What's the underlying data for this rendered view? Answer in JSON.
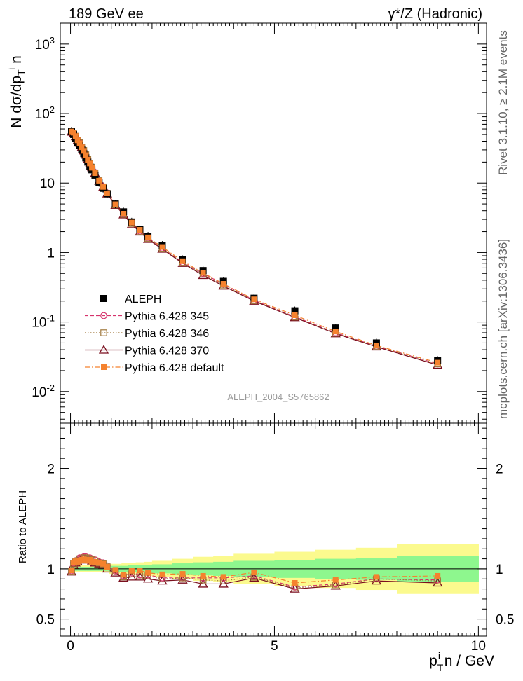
{
  "header": {
    "left": "189 GeV ee",
    "right": "γ*/Z (Hadronic)"
  },
  "side_labels": {
    "rivet": "Rivet 3.1.10, ≥ 2.1M events",
    "mcplots": "mcplots.cern.ch [arXiv:1306.3436]"
  },
  "watermark": "ALEPH_2004_S5765862",
  "colors": {
    "data": "#000000",
    "p345": "#d6336c",
    "p346": "#a0783c",
    "p370": "#7a0f1e",
    "pdefault": "#f5822e",
    "band_inner": "#8ef78e",
    "band_outer": "#fbfa8e"
  },
  "chart_data": [
    {
      "type": "scatter",
      "xlabel": "p_T^i n / GeV",
      "ylabel": "N dσ/dp_T^i n",
      "yscale": "log",
      "xlim": [
        -0.25,
        10.2
      ],
      "ylim": [
        0.0035,
        2000
      ],
      "y_tick_labels": [
        "10^-2",
        "10^-1",
        "1",
        "10",
        "10^2",
        "10^3"
      ],
      "x_tick_labels": [
        "0",
        "5",
        "10"
      ],
      "legend_position": "middle-left",
      "x": [
        0.025,
        0.075,
        0.125,
        0.175,
        0.225,
        0.275,
        0.325,
        0.375,
        0.425,
        0.475,
        0.525,
        0.6,
        0.7,
        0.8,
        0.9,
        1.1,
        1.3,
        1.5,
        1.7,
        1.9,
        2.25,
        2.75,
        3.25,
        3.75,
        4.5,
        5.5,
        6.5,
        7.5,
        9.0
      ],
      "series": [
        {
          "name": "ALEPH",
          "marker": "filled-square",
          "values": [
            56,
            50,
            44,
            38.5,
            34.5,
            30,
            26.5,
            23,
            20,
            17.5,
            15.5,
            13,
            10.2,
            8.4,
            7.0,
            5.0,
            3.85,
            2.75,
            2.15,
            1.72,
            1.27,
            0.79,
            0.55,
            0.385,
            0.22,
            0.145,
            0.082,
            0.05,
            0.028
          ]
        },
        {
          "name": "Pythia 6.428 345",
          "marker": "open-circle",
          "line": "dashed",
          "values": [
            54.9,
            53.0,
            47.5,
            42.0,
            38.3,
            33.3,
            29.7,
            25.8,
            22.2,
            19.4,
            17.1,
            14.2,
            10.9,
            8.9,
            7.2,
            4.9,
            3.58,
            2.64,
            2.03,
            1.62,
            1.16,
            0.72,
            0.5,
            0.35,
            0.205,
            0.119,
            0.07,
            0.045,
            0.025
          ]
        },
        {
          "name": "Pythia 6.428 346",
          "marker": "open-square",
          "line": "dotted",
          "values": [
            54.6,
            52.5,
            47.1,
            41.6,
            38.0,
            33.0,
            29.4,
            25.5,
            22.0,
            19.2,
            16.9,
            14.0,
            10.8,
            8.8,
            7.1,
            4.85,
            3.55,
            2.62,
            2.0,
            1.6,
            1.15,
            0.72,
            0.49,
            0.34,
            0.203,
            0.118,
            0.069,
            0.045,
            0.025
          ]
        },
        {
          "name": "Pythia 6.428 370",
          "marker": "open-triangle",
          "line": "solid",
          "values": [
            54.3,
            52.0,
            46.6,
            41.2,
            37.6,
            32.7,
            29.1,
            25.3,
            21.8,
            19.0,
            16.7,
            13.8,
            10.7,
            8.7,
            7.0,
            4.8,
            3.5,
            2.53,
            1.98,
            1.55,
            1.12,
            0.7,
            0.47,
            0.33,
            0.2,
            0.116,
            0.068,
            0.044,
            0.024
          ]
        },
        {
          "name": "Pythia 6.428 default",
          "marker": "filled-square-small",
          "line": "dashdot",
          "values": [
            55.2,
            53.0,
            47.3,
            41.2,
            37.3,
            32.7,
            29.0,
            25.1,
            21.6,
            19.1,
            16.6,
            13.9,
            10.8,
            8.8,
            7.1,
            4.95,
            3.62,
            2.7,
            2.12,
            1.65,
            1.2,
            0.75,
            0.51,
            0.355,
            0.212,
            0.125,
            0.073,
            0.046,
            0.026
          ]
        }
      ]
    },
    {
      "type": "line",
      "xlabel": "p_T^i n / GeV",
      "ylabel": "Ratio to ALEPH",
      "xlim": [
        -0.25,
        10.2
      ],
      "ylim": [
        0.33,
        2.45
      ],
      "y_tick_labels": [
        "0.5",
        "1",
        "2"
      ],
      "x": [
        0.025,
        0.075,
        0.125,
        0.175,
        0.225,
        0.275,
        0.325,
        0.375,
        0.425,
        0.475,
        0.525,
        0.6,
        0.7,
        0.8,
        0.9,
        1.1,
        1.3,
        1.5,
        1.7,
        1.9,
        2.25,
        2.75,
        3.25,
        3.75,
        4.5,
        5.5,
        6.5,
        7.5,
        9.0
      ],
      "uncertainty_bands": {
        "edges": [
          0.0,
          0.05,
          0.1,
          0.15,
          0.2,
          0.25,
          0.3,
          0.35,
          0.4,
          0.45,
          0.5,
          0.55,
          0.65,
          0.75,
          0.85,
          0.95,
          1.25,
          1.4,
          1.6,
          1.8,
          2.0,
          2.5,
          3.0,
          3.5,
          4.0,
          5.0,
          6.0,
          7.0,
          8.0,
          10.0
        ],
        "inner": [
          0.02,
          0.02,
          0.02,
          0.02,
          0.02,
          0.02,
          0.02,
          0.02,
          0.02,
          0.02,
          0.02,
          0.02,
          0.02,
          0.02,
          0.02,
          0.03,
          0.03,
          0.035,
          0.035,
          0.04,
          0.045,
          0.055,
          0.065,
          0.07,
          0.08,
          0.09,
          0.1,
          0.11,
          0.13
        ],
        "outer": [
          0.035,
          0.035,
          0.035,
          0.035,
          0.035,
          0.035,
          0.035,
          0.035,
          0.035,
          0.035,
          0.035,
          0.035,
          0.035,
          0.035,
          0.035,
          0.05,
          0.055,
          0.06,
          0.065,
          0.07,
          0.08,
          0.1,
          0.12,
          0.13,
          0.15,
          0.17,
          0.19,
          0.21,
          0.25
        ]
      },
      "series": [
        {
          "name": "Pythia 6.428 345",
          "values": [
            0.98,
            1.06,
            1.08,
            1.09,
            1.11,
            1.11,
            1.12,
            1.12,
            1.11,
            1.11,
            1.1,
            1.09,
            1.07,
            1.06,
            1.03,
            0.98,
            0.93,
            0.96,
            0.94,
            0.94,
            0.91,
            0.91,
            0.91,
            0.91,
            0.93,
            0.82,
            0.85,
            0.9,
            0.89
          ]
        },
        {
          "name": "Pythia 6.428 346",
          "values": [
            0.975,
            1.05,
            1.07,
            1.08,
            1.1,
            1.1,
            1.11,
            1.11,
            1.1,
            1.1,
            1.09,
            1.08,
            1.06,
            1.05,
            1.02,
            0.97,
            0.92,
            0.95,
            0.93,
            0.93,
            0.9,
            0.91,
            0.89,
            0.88,
            0.92,
            0.81,
            0.84,
            0.9,
            0.88
          ]
        },
        {
          "name": "Pythia 6.428 370",
          "values": [
            0.97,
            1.04,
            1.06,
            1.07,
            1.09,
            1.09,
            1.1,
            1.1,
            1.09,
            1.09,
            1.08,
            1.06,
            1.05,
            1.04,
            1.0,
            0.96,
            0.91,
            0.92,
            0.92,
            0.9,
            0.88,
            0.89,
            0.85,
            0.85,
            0.91,
            0.8,
            0.83,
            0.88,
            0.86
          ]
        },
        {
          "name": "Pythia 6.428 default",
          "values": [
            0.985,
            1.06,
            1.075,
            1.07,
            1.08,
            1.09,
            1.095,
            1.09,
            1.08,
            1.09,
            1.07,
            1.07,
            1.06,
            1.05,
            1.02,
            0.99,
            0.94,
            0.98,
            0.985,
            0.96,
            0.945,
            0.95,
            0.93,
            0.92,
            0.965,
            0.86,
            0.89,
            0.92,
            0.93
          ]
        }
      ]
    }
  ]
}
